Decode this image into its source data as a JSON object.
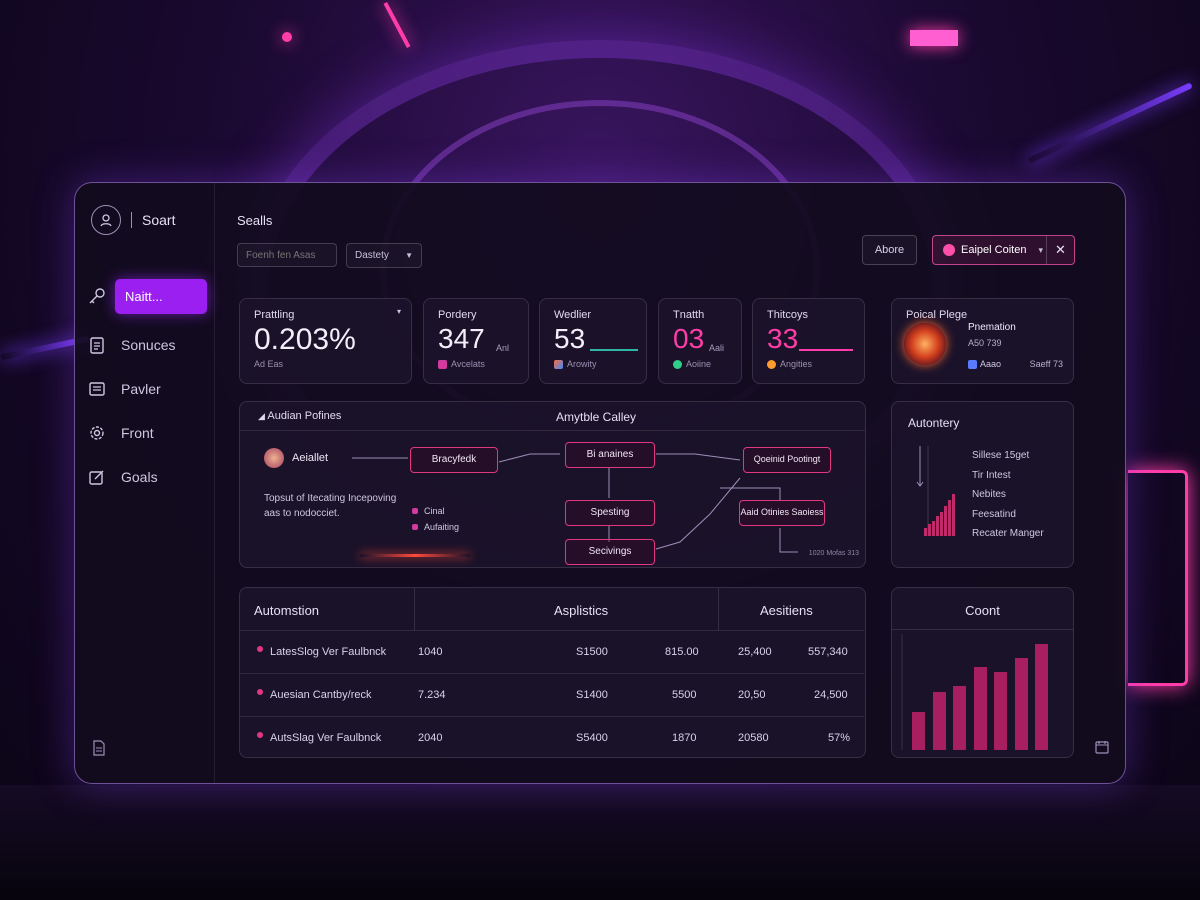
{
  "brand": {
    "name": "Soart"
  },
  "sidebar": {
    "active_label": "Naitt...",
    "items": [
      {
        "label": "Sonuces"
      },
      {
        "label": "Pavler"
      },
      {
        "label": "Front"
      },
      {
        "label": "Goals"
      }
    ]
  },
  "header": {
    "title": "Sealls",
    "search_placeholder": "Foenh fen Asas",
    "filter_value": "Dastety",
    "ghost_button": "Abore",
    "user_name": "Eaipel Coiten"
  },
  "stats": [
    {
      "label": "Prattling",
      "value": "0.203%",
      "sub": "Ad Eas"
    },
    {
      "label": "Pordery",
      "value": "347",
      "unit": "Anl",
      "sub": "Avcelats"
    },
    {
      "label": "Wedlier",
      "value": "53",
      "sub": "Arowity"
    },
    {
      "label": "Tnatth",
      "value": "03",
      "unit": "Aali",
      "sub": "Aoiine"
    },
    {
      "label": "Thitcoys",
      "value": "33",
      "sub": "Angities"
    }
  ],
  "profile_card": {
    "title": "Poical Plege",
    "name": "Pnemation",
    "detail": "A50 739",
    "footer_left": "Aaao",
    "footer_right": "Saeff 73"
  },
  "flow": {
    "heading_left": "Audian Pofines",
    "heading_center": "Amytble Calley",
    "start_node": "Aeiallet",
    "description": "Topsut of Itecating Incepoving aas to nodocciet.",
    "legend": [
      "Cinal",
      "Aufaiting"
    ],
    "nodes": [
      "Bracyfedk",
      "Bi anaines",
      "Spesting",
      "Secivings",
      "Qoeinid Pootingt",
      "Aaid Otinies Saoiess"
    ],
    "footnote": "1020 Mofas 313"
  },
  "autonomy": {
    "title": "Autontery",
    "items": [
      "Sillese 15get",
      "Tir Intest",
      "Nebites",
      "Feesatind",
      "Recater Manger"
    ]
  },
  "table": {
    "headers": [
      "Automstion",
      "Asplistics",
      "Aesitiens"
    ],
    "rows": [
      {
        "name": "LatesSlog Ver Faulbnck",
        "c1": "1040",
        "c2": "S1500",
        "c3": "815.00",
        "c4": "25,400",
        "c5": "557,340"
      },
      {
        "name": "Auesian Cantby/reck",
        "c1": "7.234",
        "c2": "S1400",
        "c3": "5500",
        "c4": "20,50",
        "c5": "24,500"
      },
      {
        "name": "AutsSlag Ver Faulbnck",
        "c1": "2040",
        "c2": "S5400",
        "c3": "1870",
        "c4": "20580",
        "c5": "57%"
      }
    ]
  },
  "count_chart": {
    "title": "Coont"
  },
  "colors": {
    "accent": "#9b1ff0",
    "pink": "#ff3da8",
    "crimson": "#e0377f"
  }
}
